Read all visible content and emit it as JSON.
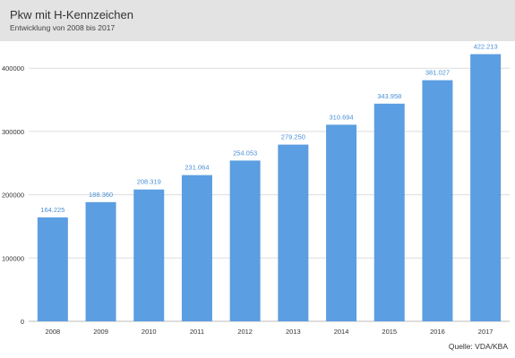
{
  "header": {
    "title": "Pkw mit H-Kennzeichen",
    "subtitle": "Entwicklung von 2008 bis 2017"
  },
  "source": "Quelle: VDA/KBA",
  "colors": {
    "bar": "#5b9ee1",
    "label": "#4a8fd6",
    "header_bg": "#e3e3e3",
    "grid": "#dddddd"
  },
  "chart_data": {
    "type": "bar",
    "title": "Pkw mit H-Kennzeichen",
    "subtitle": "Entwicklung von 2008 bis 2017",
    "categories": [
      "2008",
      "2009",
      "2010",
      "2011",
      "2012",
      "2013",
      "2014",
      "2015",
      "2016",
      "2017"
    ],
    "values": [
      164225,
      188360,
      208319,
      231064,
      254053,
      279250,
      310694,
      343958,
      381027,
      422213
    ],
    "value_labels": [
      "164.225",
      "188.360",
      "208.319",
      "231.064",
      "254.053",
      "279.250",
      "310.694",
      "343.958",
      "381.027",
      "422.213"
    ],
    "yticks": [
      0,
      100000,
      200000,
      300000,
      400000
    ],
    "ytick_labels": [
      "0",
      "100000",
      "200000",
      "300000",
      "400000"
    ],
    "ylim": [
      0,
      430000
    ],
    "xlabel": "",
    "ylabel": "",
    "grid": true,
    "legend": "none"
  }
}
